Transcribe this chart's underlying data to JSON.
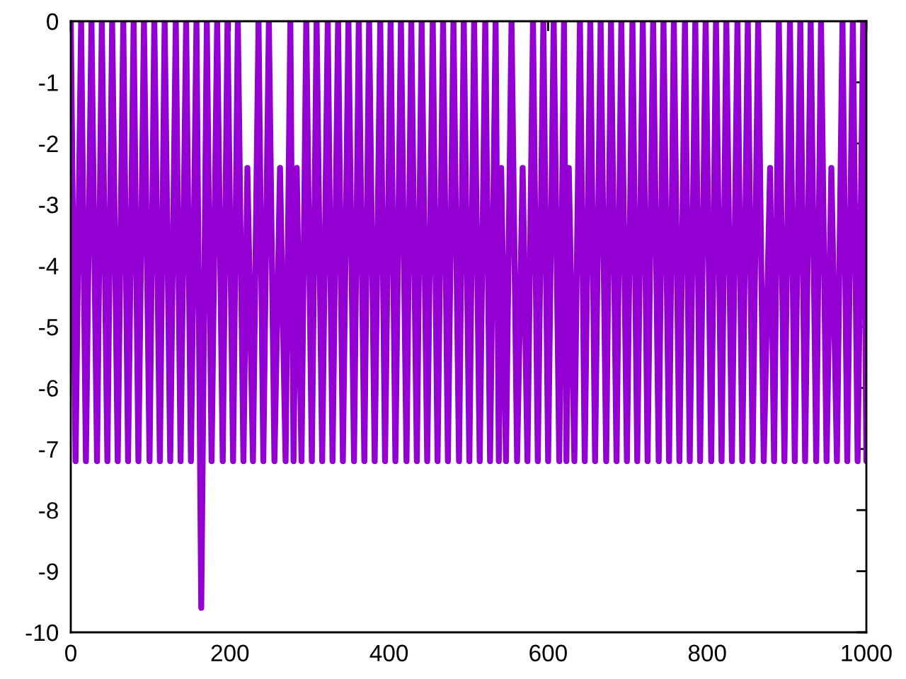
{
  "chart_data": {
    "type": "line",
    "color": "#9400d3",
    "x": [
      0,
      6,
      13,
      19,
      26,
      33,
      39,
      46,
      52,
      59,
      66,
      72,
      79,
      85,
      92,
      99,
      105,
      112,
      118,
      125,
      132,
      138,
      145,
      151,
      158,
      164,
      171,
      177,
      184,
      191,
      197,
      204,
      210,
      217,
      222,
      229,
      236,
      242,
      249,
      256,
      263,
      270,
      276,
      280,
      284,
      290,
      296,
      303,
      309,
      316,
      323,
      329,
      336,
      342,
      349,
      356,
      362,
      369,
      375,
      382,
      389,
      395,
      402,
      408,
      415,
      422,
      428,
      435,
      441,
      448,
      455,
      461,
      468,
      474,
      481,
      488,
      494,
      501,
      507,
      514,
      521,
      527,
      534,
      538,
      541,
      547,
      554,
      561,
      568,
      574,
      581,
      587,
      594,
      600,
      607,
      614,
      620,
      623,
      626,
      633,
      640,
      646,
      653,
      659,
      666,
      673,
      679,
      686,
      692,
      699,
      706,
      712,
      719,
      725,
      732,
      739,
      745,
      752,
      758,
      765,
      772,
      778,
      785,
      791,
      798,
      805,
      811,
      818,
      824,
      831,
      838,
      844,
      851,
      857,
      864,
      871,
      879,
      884,
      890,
      897,
      904,
      910,
      917,
      923,
      930,
      937,
      943,
      950,
      956,
      963,
      970,
      976,
      983,
      989,
      996,
      1000
    ],
    "values": [
      0,
      -7.2,
      0,
      -7.2,
      0,
      -7.2,
      0,
      -7.2,
      0,
      -7.2,
      0,
      -7.2,
      0,
      -7.2,
      0,
      -7.2,
      0,
      -7.2,
      0,
      -7.2,
      0,
      -7.2,
      0,
      -7.2,
      0,
      -9.6,
      0,
      -7.2,
      0,
      -7.2,
      0,
      -7.2,
      0,
      -7.2,
      -2.4,
      -7.2,
      0,
      -7.2,
      0,
      -7.2,
      -2.4,
      -7.2,
      0,
      -7.2,
      -2.4,
      -7.2,
      0,
      -7.2,
      0,
      -7.2,
      0,
      -7.2,
      0,
      -7.2,
      0,
      -7.2,
      0,
      -7.2,
      0,
      -7.2,
      0,
      -7.2,
      0,
      -7.2,
      0,
      -7.2,
      0,
      -7.2,
      0,
      -7.2,
      0,
      -7.2,
      0,
      -7.2,
      0,
      -7.2,
      0,
      -7.2,
      0,
      -7.2,
      0,
      -7.2,
      0,
      -7.2,
      -2.4,
      -7.2,
      0,
      -7.2,
      -2.4,
      -7.2,
      0,
      -7.2,
      0,
      -7.2,
      0,
      -7.2,
      0,
      -7.2,
      -2.4,
      -7.2,
      0,
      -7.2,
      0,
      -7.2,
      0,
      -7.2,
      0,
      -7.2,
      0,
      -7.2,
      0,
      -7.2,
      0,
      -7.2,
      0,
      -7.2,
      0,
      -7.2,
      0,
      -7.2,
      0,
      -7.2,
      0,
      -7.2,
      0,
      -7.2,
      0,
      -7.2,
      0,
      -7.2,
      0,
      -7.2,
      0,
      -7.2,
      0,
      -7.2,
      -2.4,
      -7.2,
      0,
      -7.2,
      0,
      -7.2,
      0,
      -7.2,
      0,
      -7.2,
      0,
      -7.2,
      -2.4,
      -7.2,
      0,
      -7.2,
      0,
      -7.2,
      0,
      -7.2
    ],
    "xlim": [
      0,
      1000
    ],
    "ylim": [
      -10,
      0
    ],
    "xticks": [
      0,
      200,
      400,
      600,
      800,
      1000
    ],
    "yticks": [
      -10,
      -9,
      -8,
      -7,
      -6,
      -5,
      -4,
      -3,
      -2,
      -1,
      0
    ],
    "grid": false
  }
}
